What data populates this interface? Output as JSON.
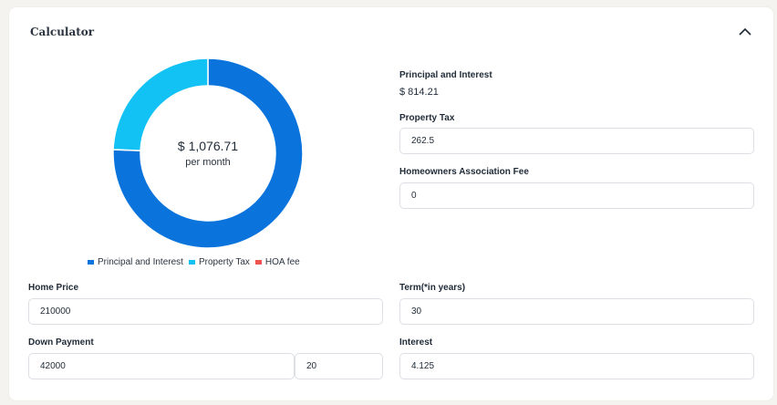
{
  "calculator": {
    "title": "Calculator",
    "collapse_icon": "chevron-up-icon"
  },
  "summary": {
    "monthly_total": "$ 1,076.71",
    "per_label": "per month"
  },
  "chart_data": {
    "type": "pie",
    "categories": [
      "Principal and Interest",
      "Property Tax",
      "HOA fee"
    ],
    "values": [
      814.21,
      262.5,
      0
    ],
    "colors": [
      "#0a74dc",
      "#12c2f4",
      "#ef5350"
    ]
  },
  "legend": {
    "items": [
      {
        "label": "Principal and Interest",
        "color": "#0a74dc"
      },
      {
        "label": "Property Tax",
        "color": "#12c2f4"
      },
      {
        "label": "HOA fee",
        "color": "#ef5350"
      }
    ]
  },
  "breakdown": {
    "principal_label": "Principal and Interest",
    "principal_value": "$ 814.21",
    "tax_label": "Property Tax",
    "tax_value": "262.5",
    "hoa_label": "Homeowners Association Fee",
    "hoa_value": "0"
  },
  "form": {
    "home_price_label": "Home Price",
    "home_price_value": "210000",
    "term_label": "Term(*in years)",
    "term_value": "30",
    "down_payment_label": "Down Payment",
    "down_payment_value": "42000",
    "down_payment_percent": "20",
    "interest_label": "Interest",
    "interest_value": "4.125"
  }
}
